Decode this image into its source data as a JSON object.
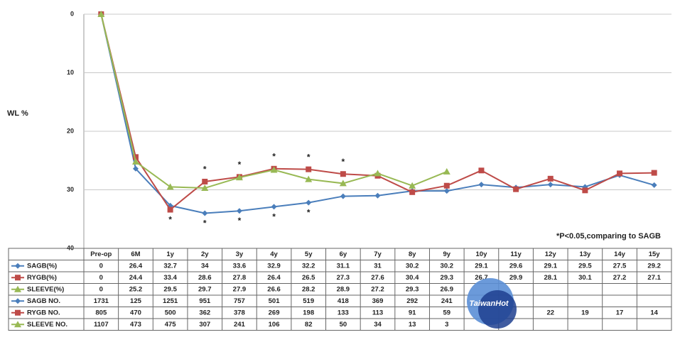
{
  "chart_data": {
    "type": "line",
    "y_axis_label": "WL %",
    "ylim": [
      0,
      40
    ],
    "yticks": [
      0,
      10,
      20,
      30,
      40
    ],
    "y_inverted": true,
    "grid": true,
    "annotation": "*P<0.05,comparing to SAGB",
    "significance_symbol": "*",
    "significance_upper": [
      "2y",
      "3y",
      "4y",
      "5y",
      "6y"
    ],
    "significance_lower": [
      "1y",
      "2y",
      "3y",
      "4y",
      "5y"
    ],
    "categories": [
      "Pre-op",
      "6M",
      "1y",
      "2y",
      "3y",
      "4y",
      "5y",
      "6y",
      "7y",
      "8y",
      "9y",
      "10y",
      "11y",
      "12y",
      "13y",
      "14y",
      "15y"
    ],
    "series": [
      {
        "name": "SAGB(%)",
        "color": "#4a7ebb",
        "marker": "diamond",
        "values": [
          0,
          26.4,
          32.7,
          34,
          33.6,
          32.9,
          32.2,
          31.1,
          31,
          30.2,
          30.2,
          29.1,
          29.6,
          29.1,
          29.5,
          27.5,
          29.2
        ]
      },
      {
        "name": "RYGB(%)",
        "color": "#be4b48",
        "marker": "square",
        "values": [
          0,
          24.4,
          33.4,
          28.6,
          27.8,
          26.4,
          26.5,
          27.3,
          27.6,
          30.4,
          29.3,
          26.7,
          29.9,
          28.1,
          30.1,
          27.2,
          27.1
        ]
      },
      {
        "name": "SLEEVE(%)",
        "color": "#98b954",
        "marker": "triangle",
        "values": [
          0,
          25.2,
          29.5,
          29.7,
          27.9,
          26.6,
          28.2,
          28.9,
          27.2,
          29.3,
          26.9,
          null,
          null,
          null,
          null,
          null,
          null
        ]
      }
    ],
    "table_rows": [
      {
        "name": "SAGB NO.",
        "color": "#4a7ebb",
        "marker": "diamond",
        "values": [
          1731,
          125,
          1251,
          951,
          757,
          501,
          519,
          418,
          369,
          292,
          241,
          null,
          null,
          null,
          null,
          null,
          null
        ]
      },
      {
        "name": "RYGB NO.",
        "color": "#be4b48",
        "marker": "square",
        "values": [
          805,
          470,
          500,
          362,
          378,
          269,
          198,
          133,
          113,
          91,
          59,
          null,
          null,
          22,
          19,
          17,
          14
        ]
      },
      {
        "name": "SLEEVE NO.",
        "color": "#98b954",
        "marker": "triangle",
        "values": [
          1107,
          473,
          475,
          307,
          241,
          106,
          82,
          50,
          34,
          13,
          3,
          null,
          null,
          null,
          null,
          null,
          null
        ]
      }
    ],
    "watermark": "TaiwanHot"
  }
}
